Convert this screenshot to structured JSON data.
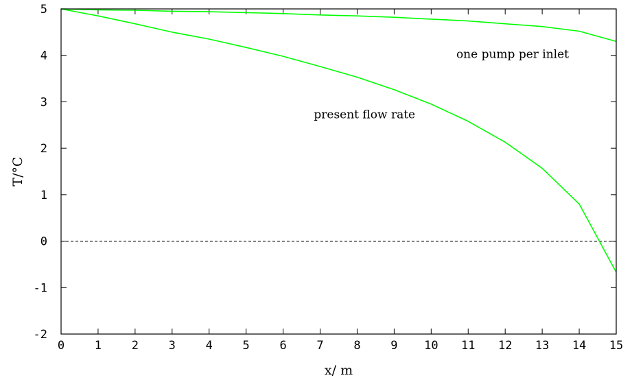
{
  "chart_data": {
    "type": "line",
    "title": "",
    "xlabel": "x/ m",
    "ylabel": "T/°C",
    "xlim": [
      0,
      15
    ],
    "ylim": [
      -2,
      5
    ],
    "xticks": [
      0,
      1,
      2,
      3,
      4,
      5,
      6,
      7,
      8,
      9,
      10,
      11,
      12,
      13,
      14,
      15
    ],
    "yticks": [
      -2,
      -1,
      0,
      1,
      2,
      3,
      4,
      5
    ],
    "grid": false,
    "series": [
      {
        "name": "one pump per inlet",
        "color": "#00ff00",
        "x": [
          0,
          1,
          2,
          3,
          4,
          5,
          6,
          7,
          8,
          9,
          10,
          11,
          12,
          13,
          14,
          15
        ],
        "values": [
          5.0,
          4.98,
          4.97,
          4.95,
          4.94,
          4.92,
          4.9,
          4.87,
          4.85,
          4.82,
          4.78,
          4.74,
          4.68,
          4.62,
          4.52,
          4.3
        ]
      },
      {
        "name": "present flow rate",
        "color": "#00ff00",
        "x": [
          0,
          1,
          2,
          3,
          4,
          5,
          6,
          7,
          8,
          9,
          10,
          11,
          12,
          13,
          14,
          15
        ],
        "values": [
          5.0,
          4.85,
          4.68,
          4.5,
          4.35,
          4.17,
          3.98,
          3.76,
          3.53,
          3.26,
          2.95,
          2.58,
          2.13,
          1.57,
          0.8,
          -0.67
        ]
      }
    ],
    "reference_lines": [
      {
        "y": 0,
        "style": "dashed",
        "color": "#000000"
      }
    ],
    "annotations": [
      {
        "text": "one pump per inlet",
        "x": 12.2,
        "y": 4.03
      },
      {
        "text": "present flow rate",
        "x": 8.2,
        "y": 2.73
      }
    ]
  }
}
